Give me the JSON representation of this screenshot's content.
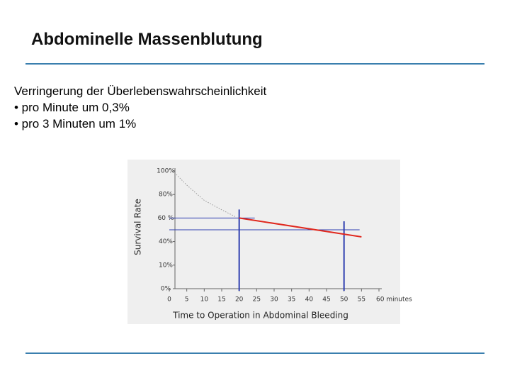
{
  "slide": {
    "title": "Abdominelle Massenblutung",
    "lines": [
      "Verringerung der Überlebenswahrscheinlichkeit",
      "• pro Minute um 0,3%",
      "• pro 3 Minuten um 1%"
    ]
  },
  "chart_data": {
    "type": "line",
    "xlabel": "Time to Operation in Abdominal Bleeding",
    "ylabel": "Survival Rate",
    "xlim": [
      0,
      60
    ],
    "xticks": [
      0,
      5,
      10,
      15,
      20,
      25,
      30,
      35,
      40,
      45,
      50,
      55,
      {
        "value": 60,
        "label": "60 minutes"
      }
    ],
    "ylim": [
      0,
      100
    ],
    "yticks": [
      {
        "value": 100,
        "label": "100%"
      },
      {
        "value": 80,
        "label": "80%"
      },
      {
        "value": 60,
        "label": "60 %"
      },
      {
        "value": 40,
        "label": "40%"
      },
      {
        "value": 10,
        "label": "10%"
      },
      {
        "value": 0,
        "label": "0%"
      }
    ],
    "series": [
      {
        "color": "#e0281e",
        "style": "solid",
        "x": [
          20,
          55
        ],
        "values": [
          60,
          44
        ]
      },
      {
        "color": "#999999",
        "style": "dotted",
        "x": [
          2,
          5,
          10,
          15,
          19
        ],
        "values": [
          97,
          88,
          75,
          67,
          61
        ]
      }
    ],
    "ref_x": [
      20,
      50
    ],
    "ref_y": [
      60,
      50
    ],
    "ref_color": "#2f3fb0"
  }
}
